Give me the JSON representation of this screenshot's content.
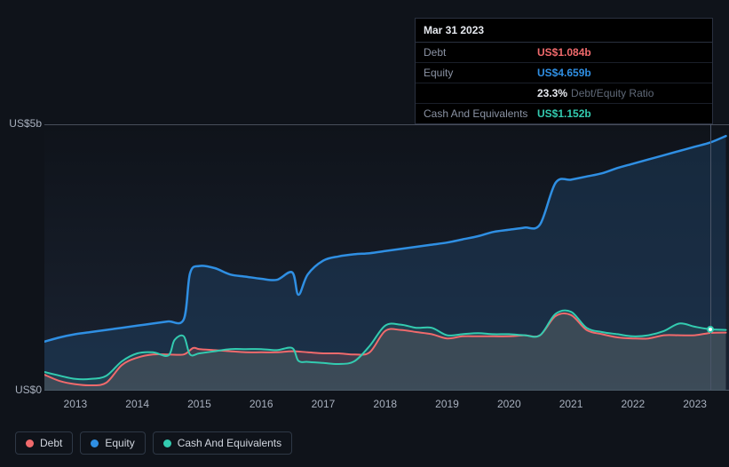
{
  "tooltip": {
    "date": "Mar 31 2023",
    "rows": [
      {
        "label": "Debt",
        "value": "US$1.084b",
        "color": "#f06a6c"
      },
      {
        "label": "Equity",
        "value": "US$4.659b",
        "color": "#2f8fe3"
      },
      {
        "label": "",
        "value": "23.3%",
        "sub": "Debt/Equity Ratio",
        "color": "#e6e9ef"
      },
      {
        "label": "Cash And Equivalents",
        "value": "US$1.152b",
        "color": "#33cbb0"
      }
    ]
  },
  "chart": {
    "type": "line-area",
    "background": "#0f131a",
    "plot_bg_top": "#0f131a",
    "plot_bg_bottom": "#1a2332",
    "y_axis": {
      "min": 0,
      "max": 5,
      "ticks": [
        {
          "v": 5,
          "label": "US$5b"
        },
        {
          "v": 0,
          "label": "US$0"
        }
      ],
      "grid_color": "#808a9c",
      "label_fontsize": 12,
      "label_color": "#a8b0be"
    },
    "x_axis": {
      "min": 2012.5,
      "max": 2023.55,
      "ticks": [
        2013,
        2014,
        2015,
        2016,
        2017,
        2018,
        2019,
        2020,
        2021,
        2022,
        2023
      ],
      "label_fontsize": 12,
      "label_color": "#a8b0be"
    },
    "cursor": {
      "x": 2023.25,
      "marker_series": "cash"
    },
    "series": [
      {
        "id": "debt",
        "name": "Debt",
        "color": "#f06a6c",
        "fill": "rgba(152,90,94,0.30)",
        "line_width": 2,
        "points": [
          [
            2012.5,
            0.3
          ],
          [
            2012.75,
            0.18
          ],
          [
            2013.0,
            0.12
          ],
          [
            2013.25,
            0.1
          ],
          [
            2013.5,
            0.15
          ],
          [
            2013.75,
            0.48
          ],
          [
            2014.0,
            0.62
          ],
          [
            2014.25,
            0.68
          ],
          [
            2014.5,
            0.68
          ],
          [
            2014.75,
            0.68
          ],
          [
            2014.9,
            0.8
          ],
          [
            2015.0,
            0.78
          ],
          [
            2015.25,
            0.76
          ],
          [
            2015.5,
            0.74
          ],
          [
            2015.75,
            0.72
          ],
          [
            2016.0,
            0.72
          ],
          [
            2016.25,
            0.72
          ],
          [
            2016.5,
            0.74
          ],
          [
            2016.75,
            0.72
          ],
          [
            2017.0,
            0.7
          ],
          [
            2017.25,
            0.7
          ],
          [
            2017.5,
            0.68
          ],
          [
            2017.75,
            0.72
          ],
          [
            2018.0,
            1.12
          ],
          [
            2018.25,
            1.14
          ],
          [
            2018.5,
            1.1
          ],
          [
            2018.75,
            1.06
          ],
          [
            2019.0,
            0.98
          ],
          [
            2019.25,
            1.02
          ],
          [
            2019.5,
            1.02
          ],
          [
            2019.75,
            1.02
          ],
          [
            2020.0,
            1.02
          ],
          [
            2020.25,
            1.04
          ],
          [
            2020.5,
            1.04
          ],
          [
            2020.75,
            1.4
          ],
          [
            2021.0,
            1.42
          ],
          [
            2021.25,
            1.14
          ],
          [
            2021.5,
            1.06
          ],
          [
            2021.75,
            1.0
          ],
          [
            2022.0,
            0.98
          ],
          [
            2022.25,
            0.98
          ],
          [
            2022.5,
            1.04
          ],
          [
            2022.75,
            1.04
          ],
          [
            2023.0,
            1.04
          ],
          [
            2023.25,
            1.084
          ],
          [
            2023.5,
            1.09
          ]
        ]
      },
      {
        "id": "cash",
        "name": "Cash And Equivalents",
        "color": "#33cbb0",
        "fill": "rgba(51,110,108,0.30)",
        "line_width": 2,
        "points": [
          [
            2012.5,
            0.35
          ],
          [
            2012.75,
            0.28
          ],
          [
            2013.0,
            0.22
          ],
          [
            2013.25,
            0.22
          ],
          [
            2013.5,
            0.28
          ],
          [
            2013.75,
            0.55
          ],
          [
            2014.0,
            0.7
          ],
          [
            2014.25,
            0.72
          ],
          [
            2014.5,
            0.66
          ],
          [
            2014.6,
            0.95
          ],
          [
            2014.75,
            1.02
          ],
          [
            2014.85,
            0.68
          ],
          [
            2015.0,
            0.7
          ],
          [
            2015.25,
            0.74
          ],
          [
            2015.5,
            0.78
          ],
          [
            2015.75,
            0.78
          ],
          [
            2016.0,
            0.78
          ],
          [
            2016.25,
            0.76
          ],
          [
            2016.5,
            0.8
          ],
          [
            2016.6,
            0.56
          ],
          [
            2016.75,
            0.54
          ],
          [
            2017.0,
            0.52
          ],
          [
            2017.25,
            0.5
          ],
          [
            2017.5,
            0.55
          ],
          [
            2017.75,
            0.84
          ],
          [
            2018.0,
            1.22
          ],
          [
            2018.25,
            1.24
          ],
          [
            2018.5,
            1.18
          ],
          [
            2018.75,
            1.18
          ],
          [
            2019.0,
            1.04
          ],
          [
            2019.25,
            1.06
          ],
          [
            2019.5,
            1.08
          ],
          [
            2019.75,
            1.06
          ],
          [
            2020.0,
            1.06
          ],
          [
            2020.25,
            1.04
          ],
          [
            2020.5,
            1.04
          ],
          [
            2020.75,
            1.44
          ],
          [
            2021.0,
            1.48
          ],
          [
            2021.25,
            1.18
          ],
          [
            2021.5,
            1.1
          ],
          [
            2021.75,
            1.06
          ],
          [
            2022.0,
            1.02
          ],
          [
            2022.25,
            1.04
          ],
          [
            2022.5,
            1.12
          ],
          [
            2022.75,
            1.26
          ],
          [
            2023.0,
            1.2
          ],
          [
            2023.25,
            1.152
          ],
          [
            2023.5,
            1.14
          ]
        ]
      },
      {
        "id": "equity",
        "name": "Equity",
        "color": "#2f8fe3",
        "fill": "rgba(32,66,102,0.45)",
        "line_width": 2.5,
        "points": [
          [
            2012.5,
            0.92
          ],
          [
            2012.75,
            1.0
          ],
          [
            2013.0,
            1.06
          ],
          [
            2013.25,
            1.1
          ],
          [
            2013.5,
            1.14
          ],
          [
            2013.75,
            1.18
          ],
          [
            2014.0,
            1.22
          ],
          [
            2014.25,
            1.26
          ],
          [
            2014.5,
            1.3
          ],
          [
            2014.75,
            1.34
          ],
          [
            2014.85,
            2.2
          ],
          [
            2015.0,
            2.34
          ],
          [
            2015.25,
            2.3
          ],
          [
            2015.5,
            2.18
          ],
          [
            2015.75,
            2.14
          ],
          [
            2016.0,
            2.1
          ],
          [
            2016.25,
            2.08
          ],
          [
            2016.5,
            2.22
          ],
          [
            2016.6,
            1.8
          ],
          [
            2016.75,
            2.18
          ],
          [
            2017.0,
            2.44
          ],
          [
            2017.25,
            2.52
          ],
          [
            2017.5,
            2.56
          ],
          [
            2017.75,
            2.58
          ],
          [
            2018.0,
            2.62
          ],
          [
            2018.25,
            2.66
          ],
          [
            2018.5,
            2.7
          ],
          [
            2018.75,
            2.74
          ],
          [
            2019.0,
            2.78
          ],
          [
            2019.25,
            2.84
          ],
          [
            2019.5,
            2.9
          ],
          [
            2019.75,
            2.98
          ],
          [
            2020.0,
            3.02
          ],
          [
            2020.25,
            3.06
          ],
          [
            2020.5,
            3.12
          ],
          [
            2020.75,
            3.9
          ],
          [
            2021.0,
            3.96
          ],
          [
            2021.25,
            4.02
          ],
          [
            2021.5,
            4.08
          ],
          [
            2021.75,
            4.18
          ],
          [
            2022.0,
            4.26
          ],
          [
            2022.25,
            4.34
          ],
          [
            2022.5,
            4.42
          ],
          [
            2022.75,
            4.5
          ],
          [
            2023.0,
            4.58
          ],
          [
            2023.25,
            4.659
          ],
          [
            2023.5,
            4.78
          ]
        ]
      }
    ]
  },
  "legend": [
    {
      "id": "debt",
      "label": "Debt",
      "color": "#f06a6c"
    },
    {
      "id": "equity",
      "label": "Equity",
      "color": "#2f8fe3"
    },
    {
      "id": "cash",
      "label": "Cash And Equivalents",
      "color": "#33cbb0"
    }
  ]
}
